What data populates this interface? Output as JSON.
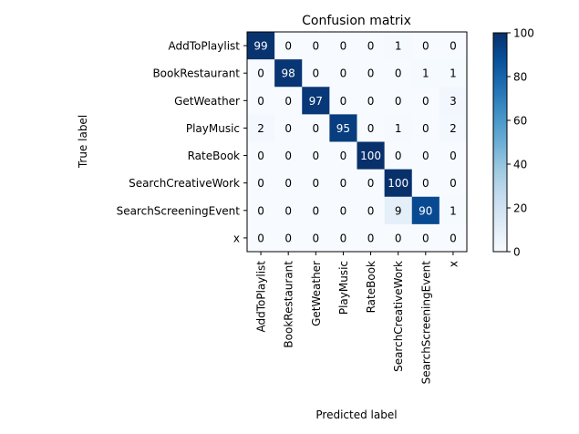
{
  "chart_data": {
    "type": "heatmap",
    "title": "Confusion matrix",
    "xlabel": "Predicted label",
    "ylabel": "True label",
    "row_labels": [
      "AddToPlaylist",
      "BookRestaurant",
      "GetWeather",
      "PlayMusic",
      "RateBook",
      "SearchCreativeWork",
      "SearchScreeningEvent",
      "x"
    ],
    "col_labels": [
      "AddToPlaylist",
      "BookRestaurant",
      "GetWeather",
      "PlayMusic",
      "RateBook",
      "SearchCreativeWork",
      "SearchScreeningEvent",
      "x"
    ],
    "values": [
      [
        99,
        0,
        0,
        0,
        0,
        1,
        0,
        0
      ],
      [
        0,
        98,
        0,
        0,
        0,
        0,
        1,
        1
      ],
      [
        0,
        0,
        97,
        0,
        0,
        0,
        0,
        3
      ],
      [
        2,
        0,
        0,
        95,
        0,
        1,
        0,
        2
      ],
      [
        0,
        0,
        0,
        0,
        100,
        0,
        0,
        0
      ],
      [
        0,
        0,
        0,
        0,
        0,
        100,
        0,
        0
      ],
      [
        0,
        0,
        0,
        0,
        0,
        9,
        90,
        1
      ],
      [
        0,
        0,
        0,
        0,
        0,
        0,
        0,
        0
      ]
    ],
    "colormap": "Blues",
    "colorbar": {
      "range": [
        0,
        100
      ],
      "ticks": [
        "0",
        "20",
        "40",
        "60",
        "80",
        "100"
      ]
    }
  }
}
